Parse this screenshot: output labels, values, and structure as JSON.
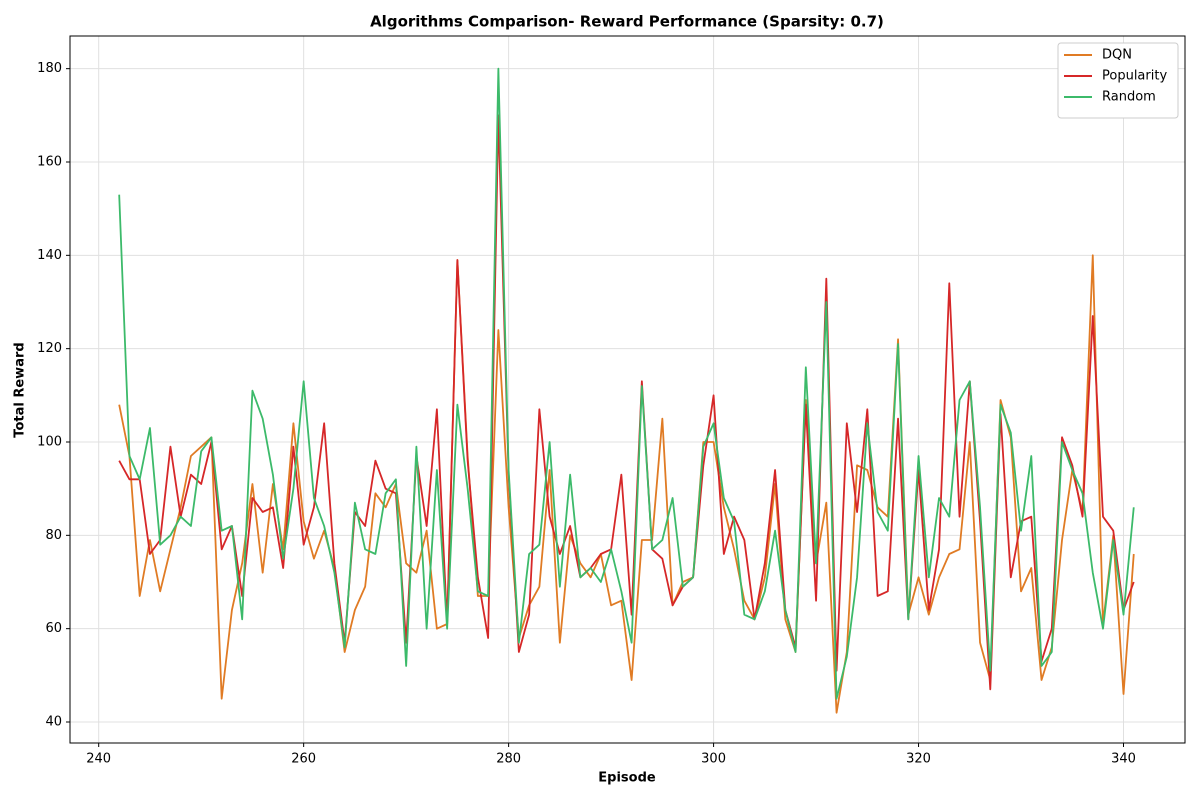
{
  "chart_data": {
    "type": "line",
    "title": "Algorithms Comparison- Reward Performance (Sparsity: 0.7)",
    "x_label": "Episode",
    "y_label": "Total Reward",
    "x": [
      242,
      243,
      244,
      245,
      246,
      247,
      248,
      249,
      250,
      251,
      252,
      253,
      254,
      255,
      256,
      257,
      258,
      259,
      260,
      261,
      262,
      263,
      264,
      265,
      266,
      267,
      268,
      269,
      270,
      271,
      272,
      273,
      274,
      275,
      276,
      277,
      278,
      279,
      280,
      281,
      282,
      283,
      284,
      285,
      286,
      287,
      288,
      289,
      290,
      291,
      292,
      293,
      294,
      295,
      296,
      297,
      298,
      299,
      300,
      301,
      302,
      303,
      304,
      305,
      306,
      307,
      308,
      309,
      310,
      311,
      312,
      313,
      314,
      315,
      316,
      317,
      318,
      319,
      320,
      321,
      322,
      323,
      324,
      325,
      326,
      327,
      328,
      329,
      330,
      331,
      332,
      333,
      334,
      335,
      336,
      337,
      338,
      339,
      340,
      341
    ],
    "series": [
      {
        "name": "DQN",
        "color": "#e07b24",
        "values": [
          108,
          97,
          67,
          79,
          68,
          77,
          86,
          97,
          99,
          101,
          45,
          64,
          74,
          91,
          72,
          91,
          77,
          104,
          83,
          75,
          81,
          73,
          55,
          64,
          69,
          89,
          86,
          91,
          74,
          72,
          81,
          60,
          61,
          139,
          97,
          67,
          67,
          124,
          86,
          58,
          65,
          69,
          94,
          57,
          80,
          74,
          71,
          76,
          65,
          66,
          49,
          79,
          79,
          105,
          65,
          70,
          71,
          100,
          100,
          86,
          77,
          66,
          62,
          71,
          91,
          62,
          55,
          109,
          74,
          87,
          42,
          55,
          95,
          94,
          86,
          84,
          122,
          63,
          71,
          63,
          71,
          76,
          77,
          100,
          57,
          49,
          109,
          101,
          68,
          73,
          49,
          56,
          79,
          94,
          85,
          140,
          61,
          80,
          46,
          76
        ]
      },
      {
        "name": "Popularity",
        "color": "#d62728",
        "values": [
          96,
          92,
          92,
          76,
          79,
          99,
          84,
          93,
          91,
          100,
          77,
          82,
          67,
          88,
          85,
          86,
          73,
          99,
          78,
          86,
          104,
          74,
          57,
          85,
          82,
          96,
          90,
          89,
          57,
          97,
          82,
          107,
          61,
          139,
          96,
          71,
          58,
          170,
          93,
          55,
          63,
          107,
          84,
          76,
          82,
          71,
          73,
          76,
          77,
          93,
          63,
          113,
          77,
          75,
          65,
          69,
          71,
          95,
          110,
          76,
          84,
          79,
          62,
          74,
          94,
          64,
          56,
          108,
          66,
          135,
          51,
          104,
          85,
          107,
          67,
          68,
          105,
          62,
          94,
          64,
          77,
          134,
          84,
          113,
          83,
          47,
          106,
          71,
          83,
          84,
          53,
          60,
          101,
          95,
          84,
          127,
          84,
          81,
          64,
          70
        ]
      },
      {
        "name": "Random",
        "color": "#3cba6a",
        "values": [
          153,
          97,
          92,
          103,
          78,
          80,
          84,
          82,
          98,
          101,
          81,
          82,
          62,
          111,
          105,
          93,
          75,
          90,
          113,
          88,
          82,
          72,
          56,
          87,
          77,
          76,
          89,
          92,
          52,
          99,
          60,
          94,
          60,
          108,
          90,
          68,
          67,
          180,
          94,
          57,
          76,
          78,
          100,
          69,
          93,
          71,
          73,
          70,
          77,
          68,
          57,
          112,
          77,
          79,
          88,
          69,
          71,
          99,
          104,
          88,
          83,
          63,
          62,
          68,
          81,
          64,
          55,
          116,
          74,
          130,
          45,
          54,
          71,
          104,
          85,
          81,
          121,
          62,
          97,
          71,
          88,
          84,
          109,
          113,
          86,
          51,
          108,
          102,
          81,
          97,
          52,
          55,
          100,
          94,
          89,
          72,
          60,
          79,
          63,
          86
        ]
      }
    ],
    "xlim": [
      237.2,
      346
    ],
    "ylim": [
      35.5,
      187
    ],
    "xticks": [
      240,
      260,
      280,
      300,
      320,
      340
    ],
    "yticks": [
      40,
      60,
      80,
      100,
      120,
      140,
      160,
      180
    ],
    "grid": true,
    "legend_position": "upper right"
  }
}
